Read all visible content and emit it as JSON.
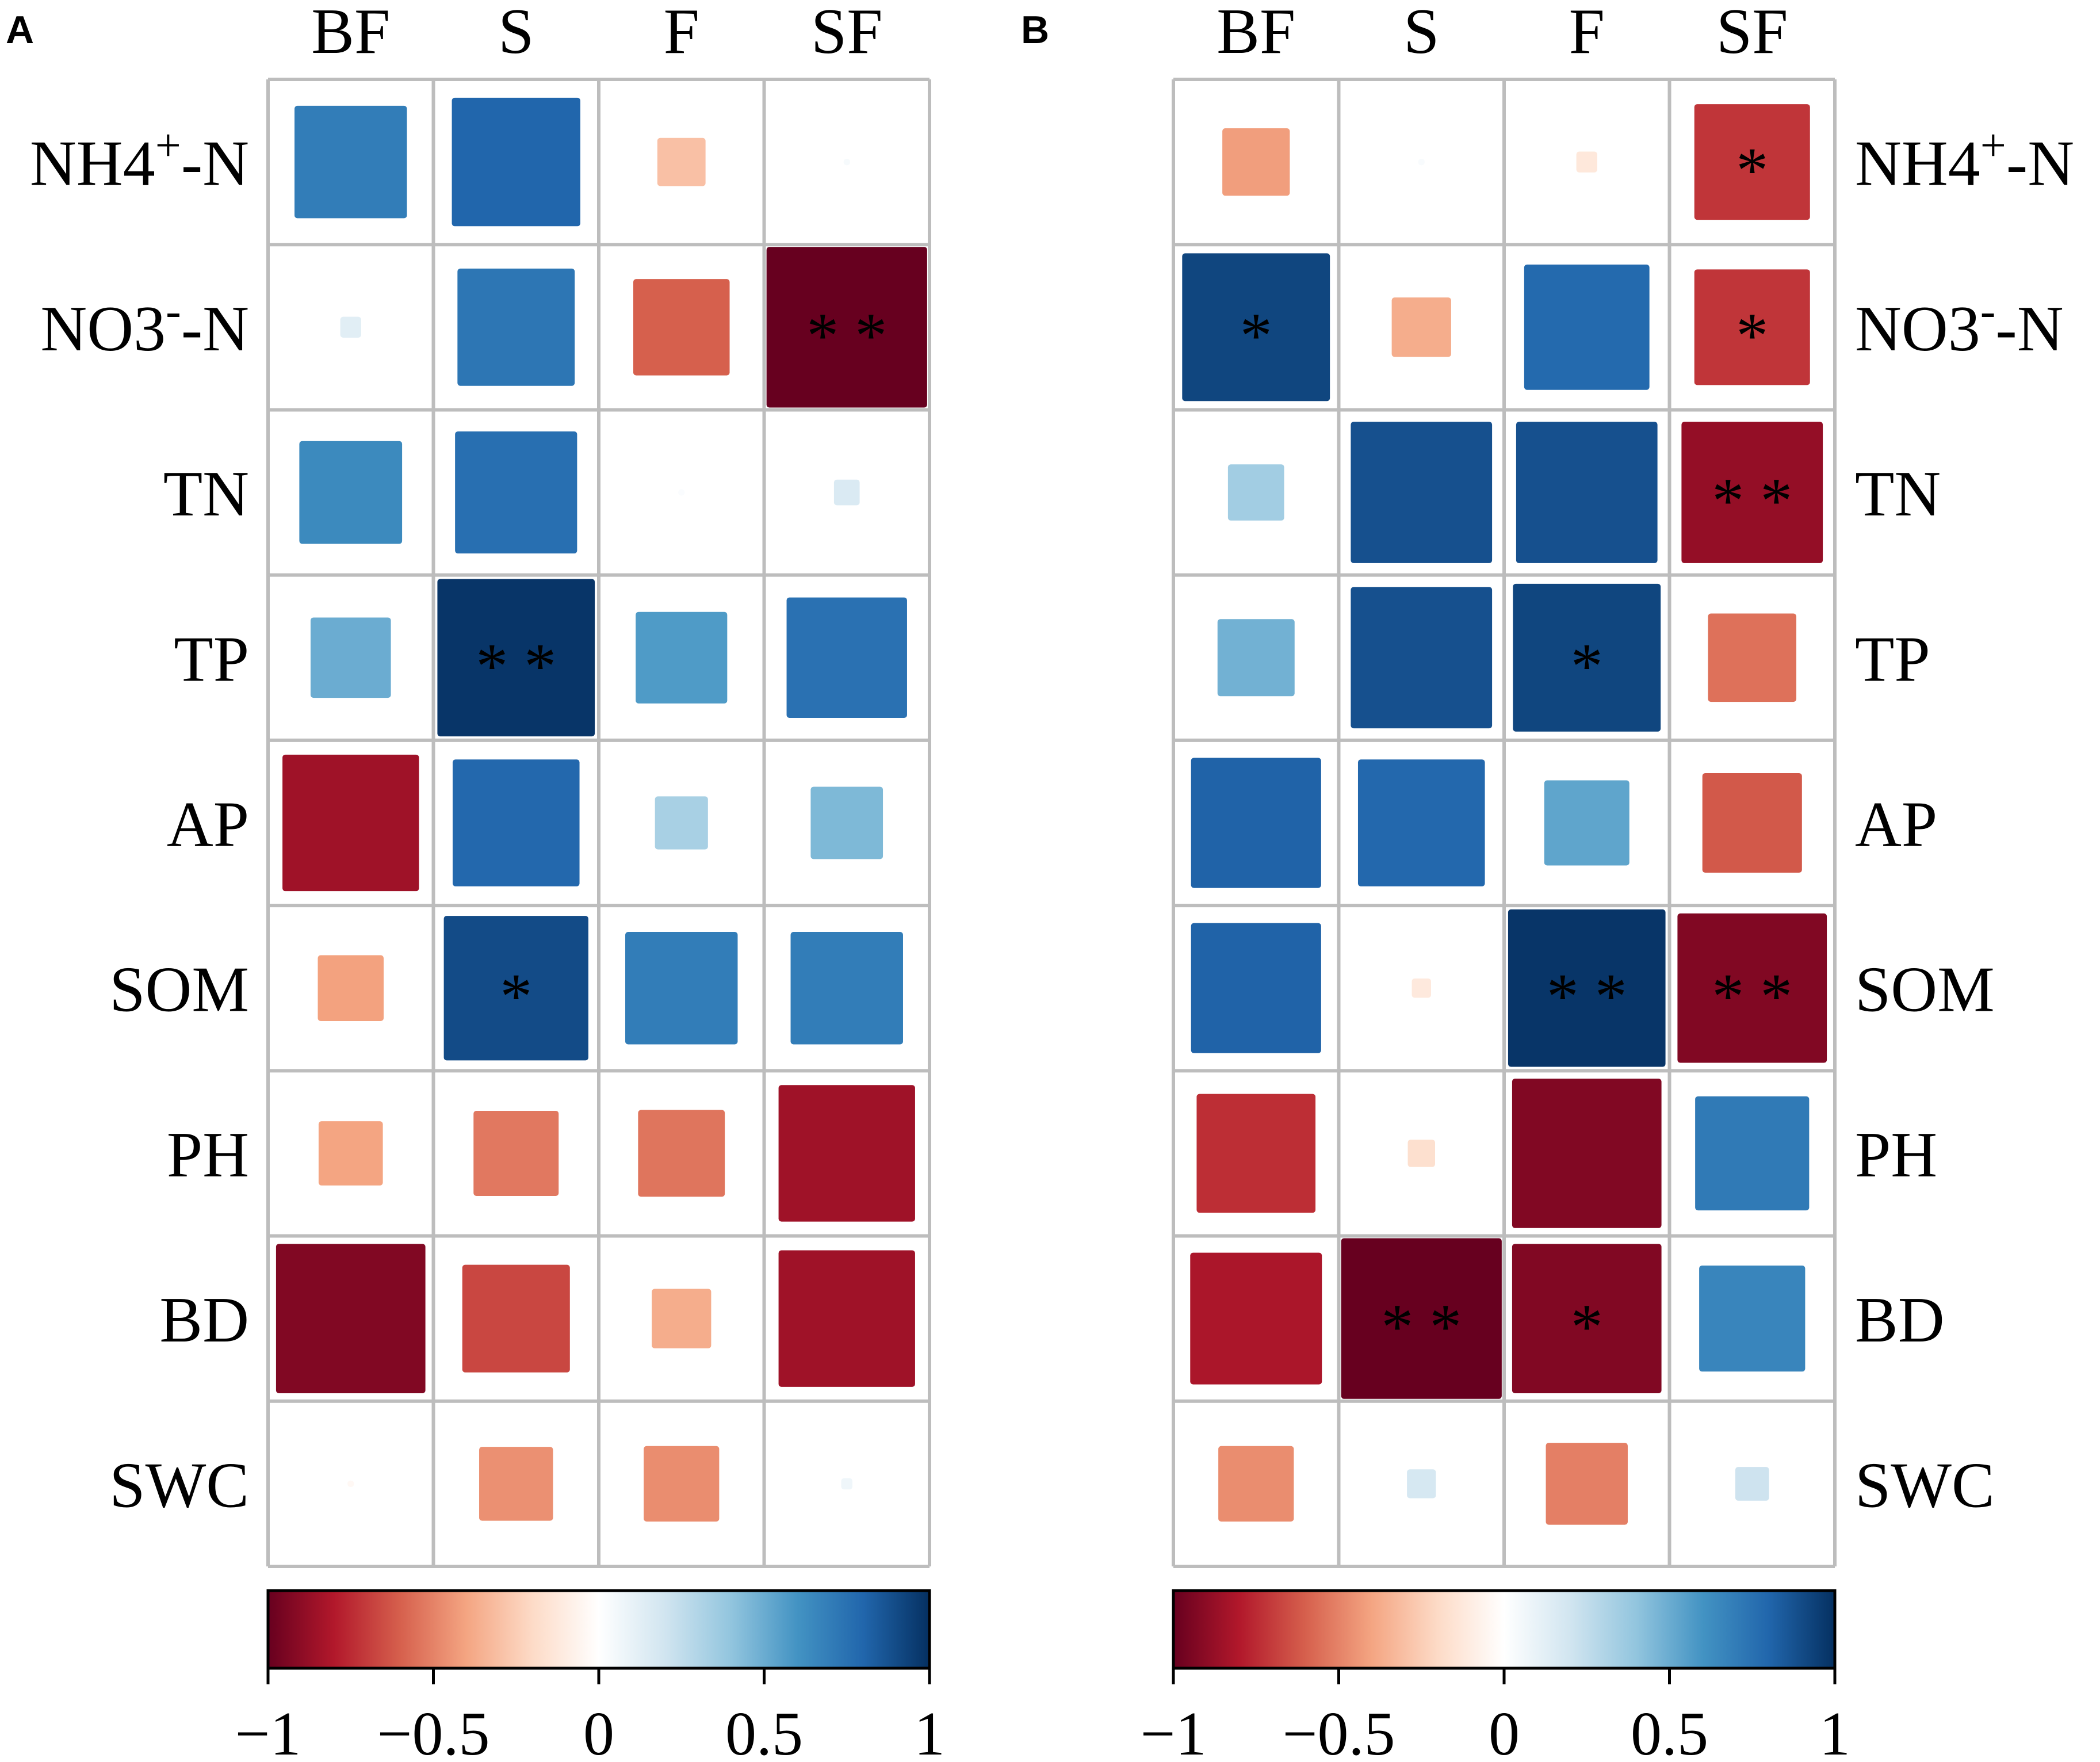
{
  "chart_data": [
    {
      "type": "heatmap",
      "panel_label": "A",
      "columns": [
        "BF",
        "S",
        "F",
        "SF"
      ],
      "rows": [
        {
          "label": "NH4",
          "sup": "+",
          "suffix": "-N"
        },
        {
          "label": "NO3",
          "sup": "-",
          "suffix": "-N"
        },
        {
          "label": "TN",
          "sup": "",
          "suffix": ""
        },
        {
          "label": "TP",
          "sup": "",
          "suffix": ""
        },
        {
          "label": "AP",
          "sup": "",
          "suffix": ""
        },
        {
          "label": "SOM",
          "sup": "",
          "suffix": ""
        },
        {
          "label": "PH",
          "sup": "",
          "suffix": ""
        },
        {
          "label": "BD",
          "sup": "",
          "suffix": ""
        },
        {
          "label": "SWC",
          "sup": "",
          "suffix": ""
        }
      ],
      "values": [
        [
          0.7,
          0.8,
          -0.3,
          0.04
        ],
        [
          0.13,
          0.73,
          -0.6,
          -1.0
        ],
        [
          0.64,
          0.76,
          0.02,
          0.16
        ],
        [
          0.5,
          0.98,
          0.57,
          0.75
        ],
        [
          -0.85,
          0.79,
          0.33,
          0.45
        ],
        [
          -0.41,
          0.9,
          0.7,
          0.7
        ],
        [
          -0.4,
          -0.53,
          -0.54,
          -0.85
        ],
        [
          -0.93,
          -0.67,
          -0.37,
          -0.85
        ],
        [
          -0.04,
          -0.46,
          -0.47,
          0.07
        ]
      ],
      "significance": [
        [
          "",
          "",
          "",
          ""
        ],
        [
          "",
          "",
          "",
          "**"
        ],
        [
          "",
          "",
          "",
          ""
        ],
        [
          "",
          "**",
          "",
          ""
        ],
        [
          "",
          "",
          "",
          ""
        ],
        [
          "",
          "*",
          "",
          ""
        ],
        [
          "",
          "",
          "",
          ""
        ],
        [
          "",
          "",
          "",
          ""
        ],
        [
          "",
          "",
          "",
          ""
        ]
      ],
      "row_labels_side": "left",
      "colorbar": {
        "min": -1,
        "max": 1,
        "ticks": [
          "−1",
          "−0.5",
          "0",
          "0.5",
          "1"
        ]
      }
    },
    {
      "type": "heatmap",
      "panel_label": "B",
      "columns": [
        "BF",
        "S",
        "F",
        "SF"
      ],
      "rows": [
        {
          "label": "NH4",
          "sup": "+",
          "suffix": "-N"
        },
        {
          "label": "NO3",
          "sup": "-",
          "suffix": "-N"
        },
        {
          "label": "TN",
          "sup": "",
          "suffix": ""
        },
        {
          "label": "TP",
          "sup": "",
          "suffix": ""
        },
        {
          "label": "AP",
          "sup": "",
          "suffix": ""
        },
        {
          "label": "SOM",
          "sup": "",
          "suffix": ""
        },
        {
          "label": "PH",
          "sup": "",
          "suffix": ""
        },
        {
          "label": "BD",
          "sup": "",
          "suffix": ""
        },
        {
          "label": "SWC",
          "sup": "",
          "suffix": ""
        }
      ],
      "values": [
        [
          -0.42,
          0.03,
          -0.13,
          -0.72
        ],
        [
          0.92,
          -0.37,
          0.78,
          -0.72
        ],
        [
          0.35,
          0.88,
          0.88,
          -0.88
        ],
        [
          0.48,
          0.88,
          0.92,
          -0.55
        ],
        [
          0.81,
          0.79,
          0.53,
          -0.62
        ],
        [
          0.81,
          -0.12,
          0.98,
          -0.93
        ],
        [
          -0.74,
          -0.17,
          -0.93,
          0.71
        ],
        [
          -0.82,
          -1.0,
          -0.93,
          0.66
        ],
        [
          -0.47,
          0.18,
          -0.51,
          0.21
        ]
      ],
      "significance": [
        [
          "",
          "",
          "",
          "*"
        ],
        [
          "*",
          "",
          "",
          "*"
        ],
        [
          "",
          "",
          "",
          "**"
        ],
        [
          "",
          "",
          "*",
          ""
        ],
        [
          "",
          "",
          "",
          ""
        ],
        [
          "",
          "",
          "**",
          "**"
        ],
        [
          "",
          "",
          "",
          ""
        ],
        [
          "",
          "**",
          "*",
          ""
        ],
        [
          "",
          "",
          "",
          ""
        ]
      ],
      "row_labels_side": "right",
      "colorbar": {
        "min": -1,
        "max": 1,
        "ticks": [
          "−1",
          "−0.5",
          "0",
          "0.5",
          "1"
        ]
      }
    }
  ],
  "colors": {
    "scale": [
      "#67001F",
      "#B2182B",
      "#D6604D",
      "#F4A582",
      "#FDDBC7",
      "#FFFFFF",
      "#D1E5F0",
      "#92C5DE",
      "#4393C3",
      "#2166AC",
      "#053061"
    ],
    "grid": "#bdbdbd",
    "text": "#000000"
  }
}
